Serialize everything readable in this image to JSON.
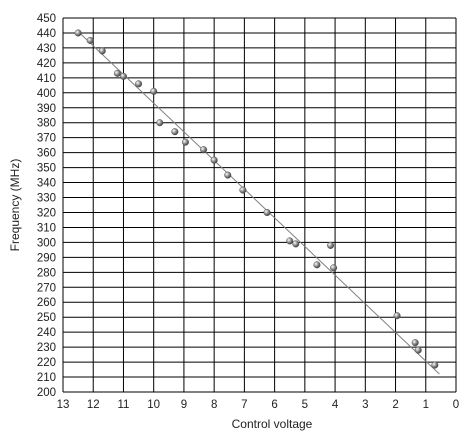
{
  "chart_data": {
    "type": "scatter",
    "title": "",
    "xlabel": "Control voltage",
    "ylabel": "Frequency (MHz)",
    "xlim": [
      13,
      0
    ],
    "ylim": [
      200,
      450
    ],
    "x_reversed": true,
    "x_ticks": [
      13,
      12,
      11,
      10,
      9,
      8,
      7,
      6,
      5,
      4,
      3,
      2,
      1,
      0
    ],
    "y_ticks": [
      200,
      210,
      220,
      230,
      240,
      250,
      260,
      270,
      280,
      290,
      300,
      310,
      320,
      330,
      340,
      350,
      360,
      370,
      380,
      390,
      400,
      410,
      420,
      430,
      440,
      450
    ],
    "grid": true,
    "legend": "none",
    "points": [
      {
        "x": 12.5,
        "y": 440
      },
      {
        "x": 12.1,
        "y": 435
      },
      {
        "x": 11.7,
        "y": 428
      },
      {
        "x": 11.2,
        "y": 413
      },
      {
        "x": 11.0,
        "y": 411
      },
      {
        "x": 10.5,
        "y": 406
      },
      {
        "x": 10.0,
        "y": 401
      },
      {
        "x": 9.8,
        "y": 380
      },
      {
        "x": 9.3,
        "y": 374
      },
      {
        "x": 8.95,
        "y": 367
      },
      {
        "x": 8.35,
        "y": 362
      },
      {
        "x": 8.0,
        "y": 355
      },
      {
        "x": 7.55,
        "y": 345
      },
      {
        "x": 7.05,
        "y": 335
      },
      {
        "x": 6.25,
        "y": 320
      },
      {
        "x": 5.5,
        "y": 301
      },
      {
        "x": 5.3,
        "y": 299
      },
      {
        "x": 4.6,
        "y": 285
      },
      {
        "x": 4.15,
        "y": 298
      },
      {
        "x": 4.05,
        "y": 283
      },
      {
        "x": 1.95,
        "y": 251
      },
      {
        "x": 1.35,
        "y": 233
      },
      {
        "x": 1.25,
        "y": 228
      },
      {
        "x": 0.7,
        "y": 218
      }
    ],
    "fit_line": {
      "x": [
        12.5,
        0.55
      ],
      "y": [
        441,
        212
      ]
    },
    "colors": {
      "grid": "#000000",
      "marker": "#8a8a8a",
      "line": "#808080"
    }
  }
}
